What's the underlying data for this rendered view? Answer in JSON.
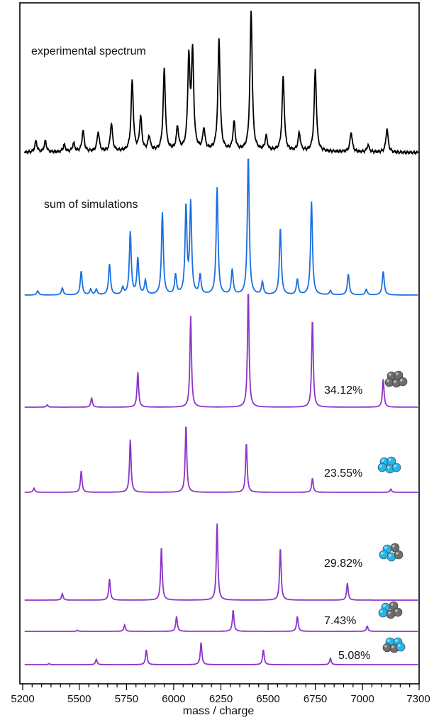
{
  "colors": {
    "experimental": "#000000",
    "sum": "#1a6fe0",
    "component": "#8c35c9",
    "frame": "#000000",
    "atom_gray": "#6e6e6e",
    "atom_cyan": "#27b6e8"
  },
  "chart_data": {
    "type": "line",
    "xlabel": "mass / charge",
    "xlim": [
      5200,
      7300
    ],
    "xticks": [
      5200,
      5500,
      5750,
      6000,
      6250,
      6500,
      6750,
      7000,
      7300
    ],
    "xtick_labels": [
      "5200",
      "5500",
      "5750",
      "6000",
      "6250",
      "6500",
      "6750",
      "7000",
      "7300"
    ],
    "grid": false,
    "legend": "none",
    "series": [
      {
        "key": "experimental",
        "annotation": "experimental spectrum",
        "peaks": [
          [
            5270,
            0.08
          ],
          [
            5320,
            0.08
          ],
          [
            5420,
            0.05
          ],
          [
            5470,
            0.06
          ],
          [
            5520,
            0.15
          ],
          [
            5600,
            0.14
          ],
          [
            5670,
            0.2
          ],
          [
            5780,
            0.5
          ],
          [
            5825,
            0.24
          ],
          [
            5870,
            0.1
          ],
          [
            5950,
            0.58
          ],
          [
            6020,
            0.16
          ],
          [
            6080,
            0.64
          ],
          [
            6100,
            0.68
          ],
          [
            6160,
            0.15
          ],
          [
            6240,
            0.79
          ],
          [
            6320,
            0.2
          ],
          [
            6410,
            1.0
          ],
          [
            6490,
            0.1
          ],
          [
            6580,
            0.53
          ],
          [
            6665,
            0.13
          ],
          [
            6750,
            0.59
          ],
          [
            6940,
            0.14
          ],
          [
            7030,
            0.05
          ],
          [
            7130,
            0.17
          ]
        ],
        "baseline": 0.06
      },
      {
        "key": "sum",
        "annotation": "sum of simulations",
        "peaks": [
          [
            5280,
            0.03
          ],
          [
            5410,
            0.05
          ],
          [
            5510,
            0.17
          ],
          [
            5560,
            0.04
          ],
          [
            5590,
            0.04
          ],
          [
            5660,
            0.22
          ],
          [
            5730,
            0.05
          ],
          [
            5770,
            0.45
          ],
          [
            5810,
            0.26
          ],
          [
            5850,
            0.1
          ],
          [
            5940,
            0.59
          ],
          [
            6010,
            0.14
          ],
          [
            6065,
            0.63
          ],
          [
            6090,
            0.65
          ],
          [
            6140,
            0.14
          ],
          [
            6230,
            0.77
          ],
          [
            6310,
            0.18
          ],
          [
            6395,
            1.0
          ],
          [
            6470,
            0.09
          ],
          [
            6565,
            0.48
          ],
          [
            6655,
            0.11
          ],
          [
            6730,
            0.67
          ],
          [
            6830,
            0.03
          ],
          [
            6925,
            0.15
          ],
          [
            7020,
            0.04
          ],
          [
            7110,
            0.17
          ]
        ]
      },
      {
        "key": "component1",
        "percentage": "34.12%",
        "cluster": "gray",
        "peaks": [
          [
            5330,
            0.02
          ],
          [
            5565,
            0.08
          ],
          [
            5810,
            0.3
          ],
          [
            6090,
            0.78
          ],
          [
            6395,
            1.0
          ],
          [
            6735,
            0.75
          ],
          [
            7110,
            0.24
          ]
        ]
      },
      {
        "key": "component2",
        "percentage": "23.55%",
        "cluster": "cyan",
        "peaks": [
          [
            5260,
            0.05
          ],
          [
            5510,
            0.26
          ],
          [
            5770,
            0.64
          ],
          [
            6065,
            0.82
          ],
          [
            6385,
            0.6
          ],
          [
            6735,
            0.17
          ],
          [
            7150,
            0.04
          ]
        ]
      },
      {
        "key": "component3",
        "percentage": "29.82%",
        "cluster": "cyan-gray",
        "peaks": [
          [
            5410,
            0.06
          ],
          [
            5660,
            0.2
          ],
          [
            5935,
            0.5
          ],
          [
            6230,
            0.72
          ],
          [
            6565,
            0.49
          ],
          [
            6920,
            0.16
          ]
        ]
      },
      {
        "key": "component4",
        "percentage": "7.43%",
        "cluster": "cyan-gray-small",
        "peaks": [
          [
            5490,
            0.01
          ],
          [
            5740,
            0.06
          ],
          [
            6015,
            0.14
          ],
          [
            6315,
            0.2
          ],
          [
            6655,
            0.14
          ],
          [
            7025,
            0.05
          ]
        ]
      },
      {
        "key": "component5",
        "percentage": "5.08%",
        "cluster": "gray-cyan-small",
        "peaks": [
          [
            5340,
            0.01
          ],
          [
            5590,
            0.05
          ],
          [
            5855,
            0.14
          ],
          [
            6145,
            0.21
          ],
          [
            6475,
            0.14
          ],
          [
            6830,
            0.06
          ]
        ]
      }
    ]
  }
}
